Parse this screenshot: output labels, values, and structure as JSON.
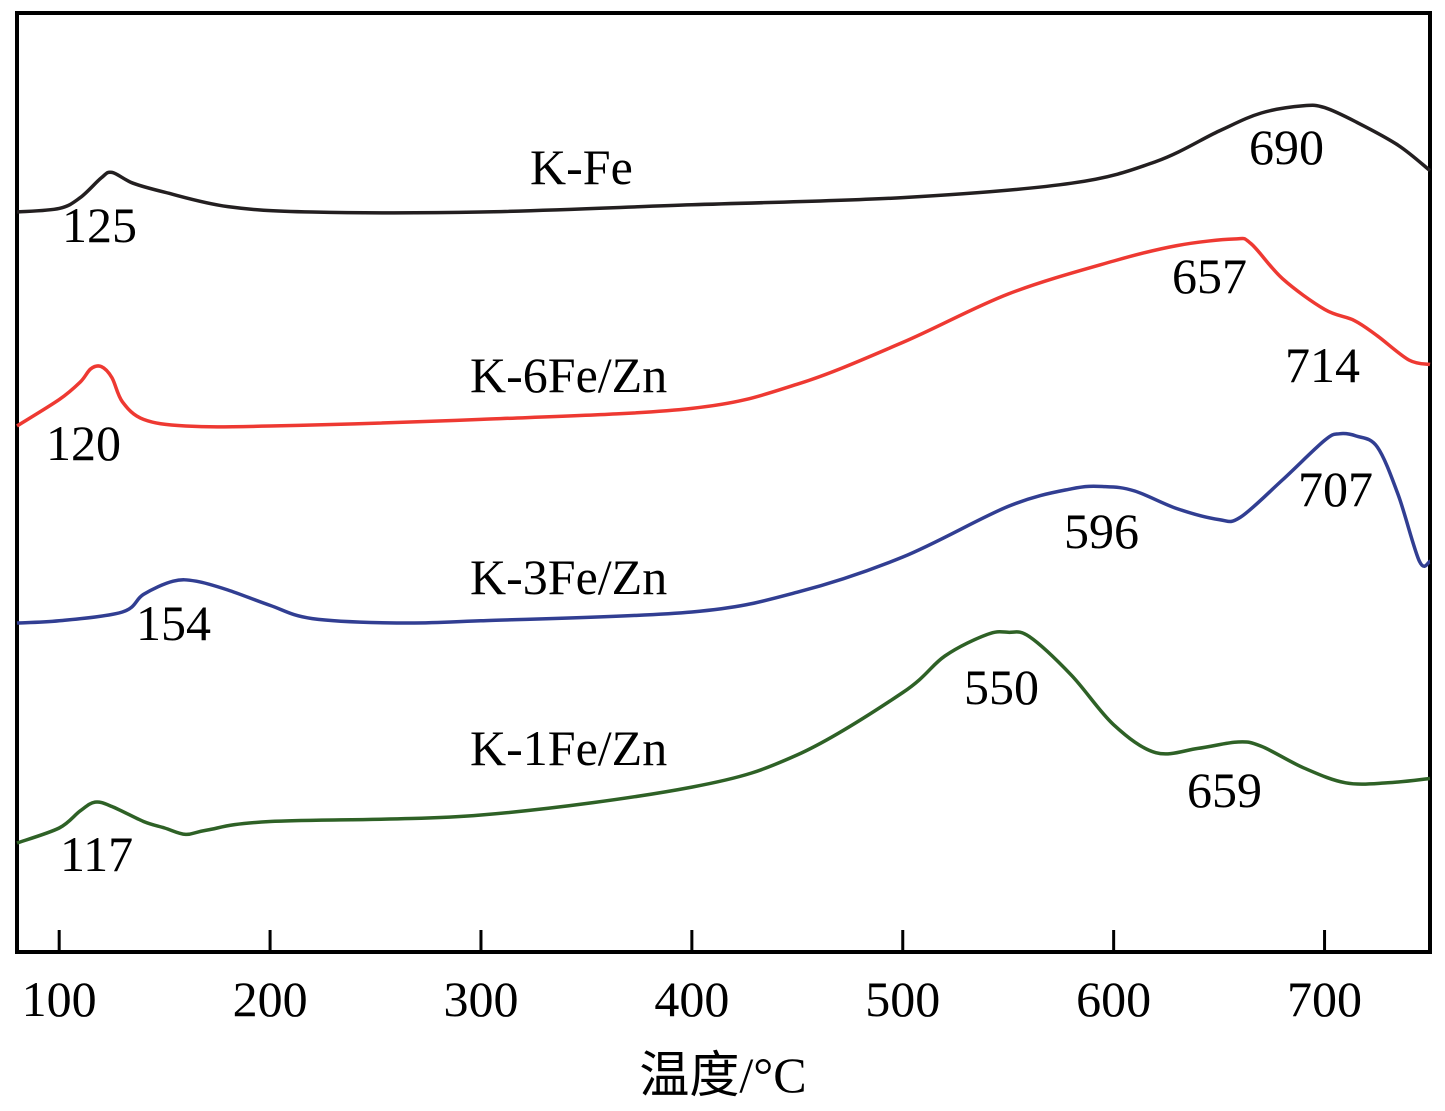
{
  "chart_data": {
    "type": "line",
    "title": "",
    "xlabel": "温度/°C",
    "ylabel": "",
    "xlim": [
      80,
      750
    ],
    "xticks": [
      100,
      200,
      300,
      400,
      500,
      600,
      700
    ],
    "xtick_labels": [
      "100",
      "200",
      "300",
      "400",
      "500",
      "600",
      "700"
    ],
    "yaxis": "arbitrary intensity, curves vertically offset, no tick labels",
    "series": [
      {
        "name": "K-Fe",
        "color": "#231f20",
        "x": [
          80,
          100,
          110,
          120,
          125,
          135,
          150,
          180,
          220,
          300,
          400,
          500,
          580,
          620,
          650,
          670,
          690,
          700,
          715,
          735,
          750
        ],
        "y": [
          0.0,
          0.02,
          0.08,
          0.19,
          0.22,
          0.16,
          0.11,
          0.03,
          0.0,
          0.0,
          0.04,
          0.08,
          0.16,
          0.28,
          0.45,
          0.55,
          0.59,
          0.58,
          0.5,
          0.37,
          0.23
        ],
        "peaks": [
          {
            "label": "125",
            "x": 125
          },
          {
            "label": "690",
            "x": 690
          }
        ]
      },
      {
        "name": "K-6Fe/Zn",
        "color": "#ee3932",
        "x": [
          80,
          100,
          110,
          115,
          120,
          125,
          130,
          140,
          160,
          200,
          300,
          400,
          450,
          500,
          550,
          600,
          630,
          657,
          665,
          680,
          700,
          714,
          725,
          740,
          750
        ],
        "y": [
          0.0,
          0.12,
          0.2,
          0.26,
          0.27,
          0.22,
          0.11,
          0.03,
          0.0,
          0.0,
          0.03,
          0.08,
          0.19,
          0.38,
          0.6,
          0.75,
          0.82,
          0.85,
          0.83,
          0.67,
          0.53,
          0.48,
          0.41,
          0.3,
          0.28
        ],
        "peaks": [
          {
            "label": "120",
            "x": 120
          },
          {
            "label": "657",
            "x": 657
          },
          {
            "label": "714",
            "x": 714
          }
        ]
      },
      {
        "name": "K-3Fe/Zn",
        "color": "#313e92",
        "x": [
          80,
          100,
          130,
          140,
          154,
          165,
          180,
          200,
          220,
          260,
          300,
          400,
          450,
          500,
          550,
          580,
          596,
          610,
          630,
          650,
          660,
          680,
          700,
          707,
          715,
          725,
          735,
          745,
          750
        ],
        "y": [
          0.0,
          0.01,
          0.05,
          0.13,
          0.19,
          0.19,
          0.15,
          0.08,
          0.02,
          0.0,
          0.01,
          0.05,
          0.14,
          0.3,
          0.53,
          0.61,
          0.62,
          0.6,
          0.52,
          0.47,
          0.48,
          0.65,
          0.83,
          0.86,
          0.85,
          0.8,
          0.58,
          0.28,
          0.28
        ],
        "peaks": [
          {
            "label": "154",
            "x": 154
          },
          {
            "label": "596",
            "x": 596
          },
          {
            "label": "707",
            "x": 707
          }
        ]
      },
      {
        "name": "K-1Fe/Zn",
        "color": "#2e6126",
        "x": [
          80,
          100,
          110,
          117,
          125,
          140,
          150,
          160,
          170,
          200,
          300,
          400,
          450,
          500,
          520,
          540,
          550,
          560,
          580,
          600,
          620,
          640,
          659,
          670,
          690,
          710,
          730,
          750
        ],
        "y": [
          0.0,
          0.07,
          0.15,
          0.19,
          0.17,
          0.1,
          0.07,
          0.04,
          0.06,
          0.1,
          0.13,
          0.26,
          0.41,
          0.7,
          0.87,
          0.97,
          0.98,
          0.96,
          0.78,
          0.55,
          0.42,
          0.44,
          0.47,
          0.45,
          0.35,
          0.28,
          0.28,
          0.3
        ],
        "peaks": [
          {
            "label": "117",
            "x": 117
          },
          {
            "label": "550",
            "x": 550
          },
          {
            "label": "659",
            "x": 659
          }
        ]
      }
    ]
  }
}
